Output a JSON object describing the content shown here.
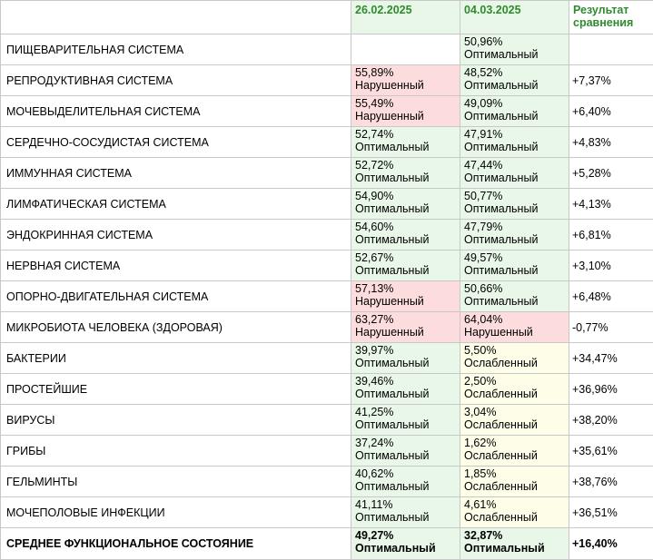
{
  "header": {
    "date1": "26.02.2025",
    "date2": "04.03.2025",
    "result_label": "Результат сравнения"
  },
  "rows": [
    {
      "name": "ПИЩЕВАРИТЕЛЬНАЯ СИСТЕМА",
      "v1": "",
      "s1": "",
      "c1": "none",
      "v2": "50,96%",
      "s2": "Оптимальный",
      "c2": "opt",
      "diff": ""
    },
    {
      "name": "РЕПРОДУКТИВНАЯ СИСТЕМА",
      "v1": "55,89%",
      "s1": "Нарушенный",
      "c1": "bad",
      "v2": "48,52%",
      "s2": "Оптимальный",
      "c2": "opt",
      "diff": "+7,37%"
    },
    {
      "name": "МОЧЕВЫДЕЛИТЕЛЬНАЯ СИСТЕМА",
      "v1": "55,49%",
      "s1": "Нарушенный",
      "c1": "bad",
      "v2": "49,09%",
      "s2": "Оптимальный",
      "c2": "opt",
      "diff": "+6,40%"
    },
    {
      "name": "СЕРДЕЧНО-СОСУДИСТАЯ СИСТЕМА",
      "v1": "52,74%",
      "s1": "Оптимальный",
      "c1": "opt",
      "v2": "47,91%",
      "s2": "Оптимальный",
      "c2": "opt",
      "diff": "+4,83%"
    },
    {
      "name": "ИММУННАЯ СИСТЕМА",
      "v1": "52,72%",
      "s1": "Оптимальный",
      "c1": "opt",
      "v2": "47,44%",
      "s2": "Оптимальный",
      "c2": "opt",
      "diff": "+5,28%"
    },
    {
      "name": "ЛИМФАТИЧЕСКАЯ СИСТЕМА",
      "v1": "54,90%",
      "s1": "Оптимальный",
      "c1": "opt",
      "v2": "50,77%",
      "s2": "Оптимальный",
      "c2": "opt",
      "diff": "+4,13%"
    },
    {
      "name": "ЭНДОКРИННАЯ СИСТЕМА",
      "v1": "54,60%",
      "s1": "Оптимальный",
      "c1": "opt",
      "v2": "47,79%",
      "s2": "Оптимальный",
      "c2": "opt",
      "diff": "+6,81%"
    },
    {
      "name": "НЕРВНАЯ СИСТЕМА",
      "v1": "52,67%",
      "s1": "Оптимальный",
      "c1": "opt",
      "v2": "49,57%",
      "s2": "Оптимальный",
      "c2": "opt",
      "diff": "+3,10%"
    },
    {
      "name": "ОПОРНО-ДВИГАТЕЛЬНАЯ СИСТЕМА",
      "v1": "57,13%",
      "s1": "Нарушенный",
      "c1": "bad",
      "v2": "50,66%",
      "s2": "Оптимальный",
      "c2": "opt",
      "diff": "+6,48%"
    },
    {
      "name": "МИКРОБИОТА ЧЕЛОВЕКА (ЗДОРОВАЯ)",
      "v1": "63,27%",
      "s1": "Нарушенный",
      "c1": "bad",
      "v2": "64,04%",
      "s2": "Нарушенный",
      "c2": "bad",
      "diff": "-0,77%"
    },
    {
      "name": "БАКТЕРИИ",
      "v1": "39,97%",
      "s1": "Оптимальный",
      "c1": "opt",
      "v2": "5,50%",
      "s2": "Ослабленный",
      "c2": "weak",
      "diff": "+34,47%"
    },
    {
      "name": "ПРОСТЕЙШИЕ",
      "v1": "39,46%",
      "s1": "Оптимальный",
      "c1": "opt",
      "v2": "2,50%",
      "s2": "Ослабленный",
      "c2": "weak",
      "diff": "+36,96%"
    },
    {
      "name": "ВИРУСЫ",
      "v1": "41,25%",
      "s1": "Оптимальный",
      "c1": "opt",
      "v2": "3,04%",
      "s2": "Ослабленный",
      "c2": "weak",
      "diff": "+38,20%"
    },
    {
      "name": "ГРИБЫ",
      "v1": "37,24%",
      "s1": "Оптимальный",
      "c1": "opt",
      "v2": "1,62%",
      "s2": "Ослабленный",
      "c2": "weak",
      "diff": "+35,61%"
    },
    {
      "name": "ГЕЛЬМИНТЫ",
      "v1": "40,62%",
      "s1": "Оптимальный",
      "c1": "opt",
      "v2": "1,85%",
      "s2": "Ослабленный",
      "c2": "weak",
      "diff": "+38,76%"
    },
    {
      "name": "МОЧЕПОЛОВЫЕ ИНФЕКЦИИ",
      "v1": "41,11%",
      "s1": "Оптимальный",
      "c1": "opt",
      "v2": "4,61%",
      "s2": "Ослабленный",
      "c2": "weak",
      "diff": "+36,51%"
    }
  ],
  "total": {
    "name": "СРЕДНЕЕ ФУНКЦИОНАЛЬНОЕ СОСТОЯНИЕ",
    "v1": "49,27%",
    "s1": "Оптимальный",
    "c1": "opt",
    "v2": "32,87%",
    "s2": "Оптимальный",
    "c2": "opt",
    "diff": "+16,40%"
  },
  "colors": {
    "optimal": "#e8f7e8",
    "impaired": "#fcdcdc",
    "weakened": "#fefde8",
    "header_text": "#2e8b2e"
  }
}
